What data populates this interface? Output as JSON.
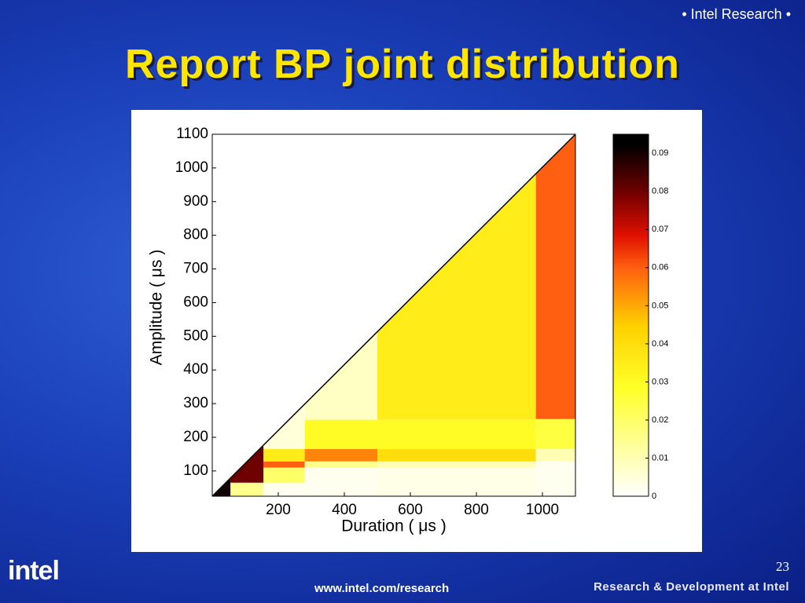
{
  "slide": {
    "header_tag": "• Intel Research •",
    "title": "Report BP joint distribution",
    "page_number": "23",
    "url": "www.intel.com/research",
    "footer_brand": "Research & Development at Intel",
    "logo": "intel"
  },
  "chart_data": {
    "type": "heatmap",
    "xlabel": "Duration ( μs )",
    "ylabel": "Amplitude ( μs )",
    "xlim": [
      0,
      1100
    ],
    "ylim": [
      25,
      1100
    ],
    "xticks": [
      200,
      400,
      600,
      800,
      1000
    ],
    "yticks": [
      100,
      200,
      300,
      400,
      500,
      600,
      700,
      800,
      900,
      1000,
      1100
    ],
    "clim": [
      0,
      0.095
    ],
    "cticks": [
      0,
      0.01,
      0.02,
      0.03,
      0.04,
      0.05,
      0.06,
      0.07,
      0.08,
      0.09
    ],
    "cells": [
      {
        "x0": 980,
        "x1": 1100,
        "y0": 254,
        "y1": 1100,
        "value": 0.06
      },
      {
        "x0": 980,
        "x1": 1100,
        "y0": 167,
        "y1": 254,
        "value": 0.025
      },
      {
        "x0": 980,
        "x1": 1100,
        "y0": 128,
        "y1": 167,
        "value": 0.01
      },
      {
        "x0": 980,
        "x1": 1100,
        "y0": 25,
        "y1": 128,
        "value": 0.002
      },
      {
        "x0": 500,
        "x1": 980,
        "y0": 252,
        "y1": 1100,
        "value": 0.035
      },
      {
        "x0": 500,
        "x1": 980,
        "y0": 165,
        "y1": 252,
        "value": 0.03
      },
      {
        "x0": 500,
        "x1": 980,
        "y0": 128,
        "y1": 165,
        "value": 0.04
      },
      {
        "x0": 500,
        "x1": 980,
        "y0": 110,
        "y1": 128,
        "value": 0.01
      },
      {
        "x0": 500,
        "x1": 980,
        "y0": 25,
        "y1": 110,
        "value": 0.003
      },
      {
        "x0": 280,
        "x1": 500,
        "y0": 252,
        "y1": 1100,
        "value": 0.008
      },
      {
        "x0": 280,
        "x1": 500,
        "y0": 165,
        "y1": 252,
        "value": 0.03
      },
      {
        "x0": 280,
        "x1": 500,
        "y0": 128,
        "y1": 165,
        "value": 0.055
      },
      {
        "x0": 280,
        "x1": 500,
        "y0": 110,
        "y1": 128,
        "value": 0.015
      },
      {
        "x0": 280,
        "x1": 500,
        "y0": 25,
        "y1": 110,
        "value": 0.002
      },
      {
        "x0": 155,
        "x1": 280,
        "y0": 165,
        "y1": 1100,
        "value": 0.005
      },
      {
        "x0": 155,
        "x1": 280,
        "y0": 128,
        "y1": 165,
        "value": 0.035
      },
      {
        "x0": 155,
        "x1": 280,
        "y0": 110,
        "y1": 128,
        "value": 0.06
      },
      {
        "x0": 155,
        "x1": 280,
        "y0": 65,
        "y1": 110,
        "value": 0.02
      },
      {
        "x0": 155,
        "x1": 280,
        "y0": 25,
        "y1": 65,
        "value": 0.002
      },
      {
        "x0": 55,
        "x1": 155,
        "y0": 65,
        "y1": 1100,
        "value": 0.08
      },
      {
        "x0": 55,
        "x1": 155,
        "y0": 25,
        "y1": 65,
        "value": 0.015
      },
      {
        "x0": 5,
        "x1": 55,
        "y0": 25,
        "y1": 1100,
        "value": 0.09
      }
    ]
  }
}
